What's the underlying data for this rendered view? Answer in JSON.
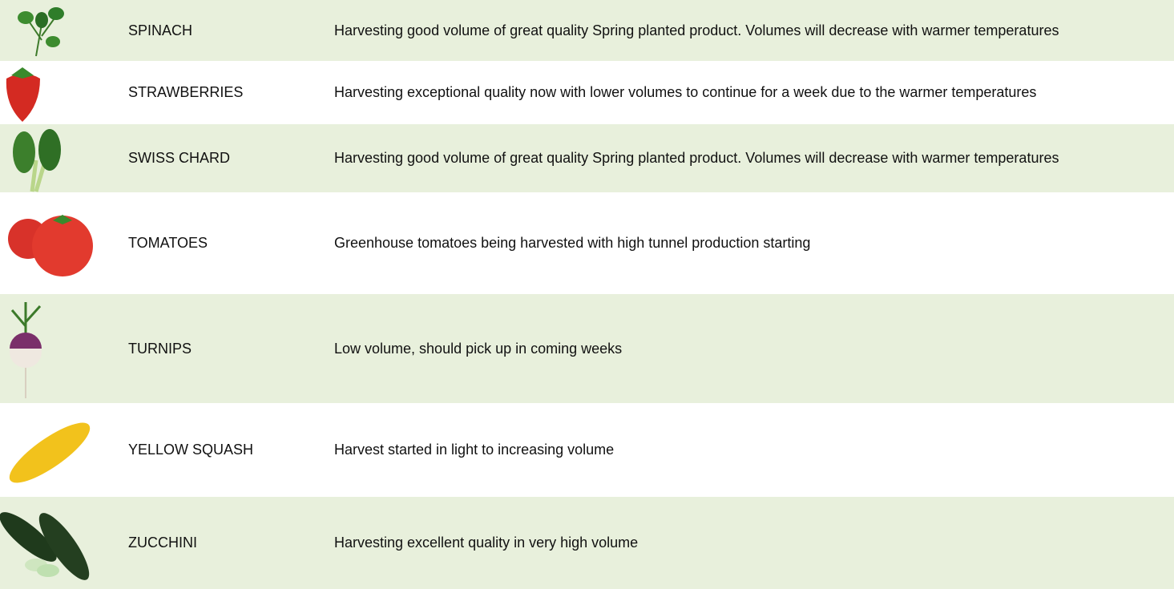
{
  "rows": [
    {
      "name": "SPINACH",
      "description": "Harvesting good volume of great quality Spring planted product. Volumes will decrease with warmer temperatures"
    },
    {
      "name": "STRAWBERRIES",
      "description": "Harvesting exceptional quality now with lower volumes to continue for a week due to the warmer temperatures"
    },
    {
      "name": "SWISS CHARD",
      "description": "Harvesting good volume of great quality Spring planted product. Volumes will decrease with warmer temperatures"
    },
    {
      "name": "TOMATOES",
      "description": "Greenhouse tomatoes being harvested with high tunnel production starting"
    },
    {
      "name": "TURNIPS",
      "description": "Low volume, should pick up in coming weeks"
    },
    {
      "name": "YELLOW SQUASH",
      "description": "Harvest started in light to increasing volume"
    },
    {
      "name": "ZUCCHINI",
      "description": "Harvesting excellent quality in very high volume"
    }
  ]
}
